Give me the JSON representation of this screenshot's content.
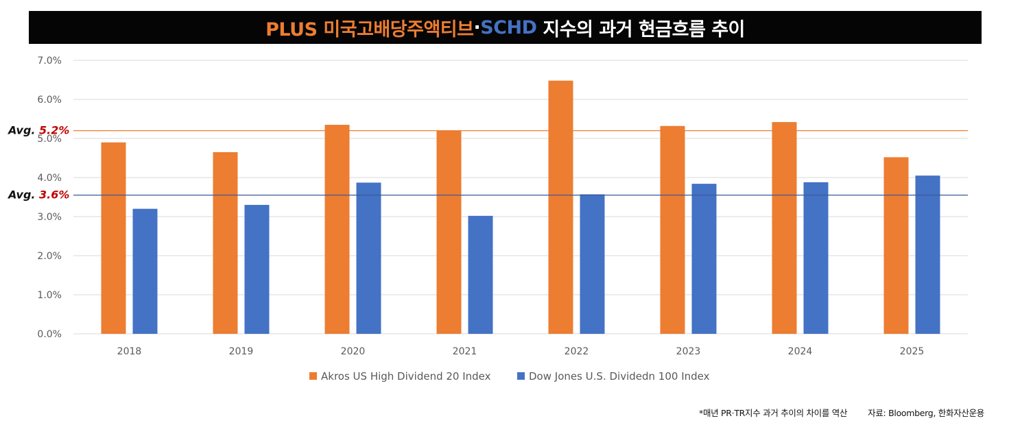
{
  "title": {
    "part1": "PLUS 미국고배당주액티브",
    "sep": "·",
    "part2": "SCHD",
    "part3": " 지수의 과거 현금흐름 추이"
  },
  "colors": {
    "series1": "#ED7D31",
    "series2": "#4472C4",
    "avg_label": "#C00000",
    "grid": "#D9D9D9"
  },
  "avg_lines": [
    {
      "prefix": "Avg. ",
      "value_label": "5.2%",
      "value": 5.2,
      "series": 0
    },
    {
      "prefix": "Avg. ",
      "value_label": "3.6%",
      "value": 3.55,
      "series": 1
    }
  ],
  "chart_data": {
    "type": "bar",
    "categories": [
      "2018",
      "2019",
      "2020",
      "2021",
      "2022",
      "2023",
      "2024",
      "2025"
    ],
    "series": [
      {
        "name": "Akros US High Dividend 20 Index",
        "values": [
          4.9,
          4.65,
          5.35,
          5.2,
          6.48,
          5.32,
          5.42,
          4.52
        ]
      },
      {
        "name": "Dow Jones U.S. Dividedn 100 Index",
        "values": [
          3.2,
          3.3,
          3.87,
          3.02,
          3.57,
          3.84,
          3.88,
          4.05
        ]
      }
    ],
    "y_ticks": [
      "0.0%",
      "1.0%",
      "2.0%",
      "3.0%",
      "4.0%",
      "5.0%",
      "6.0%",
      "7.0%"
    ],
    "ylim": [
      0,
      7
    ],
    "grid": true,
    "legend": "bottom"
  },
  "footnote": {
    "note": "*매년 PR·TR지수 과거 추이의 차이를 역산",
    "source": "자료: Bloomberg, 한화자산운용"
  }
}
